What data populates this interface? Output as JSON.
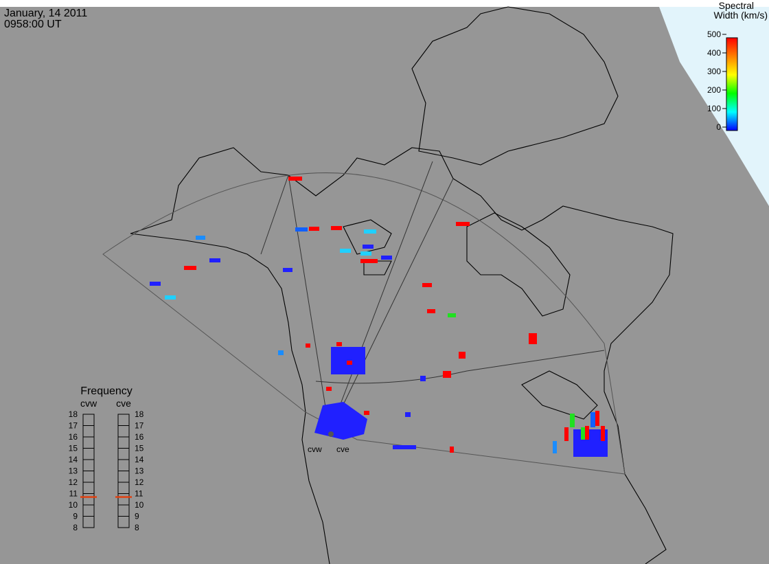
{
  "header": {
    "date": "January, 14 2011",
    "time": "0958:00 UT"
  },
  "colorbar": {
    "title_1": "Spectral",
    "title_2": "Width (km/s)",
    "lim": [
      0,
      500
    ],
    "ticks": [
      0,
      100,
      200,
      300,
      400,
      500
    ]
  },
  "frequency": {
    "title": "Frequency",
    "lim": [
      8,
      18
    ],
    "ticks": [
      8,
      9,
      10,
      11,
      12,
      13,
      14,
      15,
      16,
      17,
      18
    ],
    "radars": [
      {
        "name": "cvw",
        "value": 10.7
      },
      {
        "name": "cve",
        "value": 10.7
      }
    ]
  },
  "radar_labels": [
    "cvw",
    "cve"
  ]
}
